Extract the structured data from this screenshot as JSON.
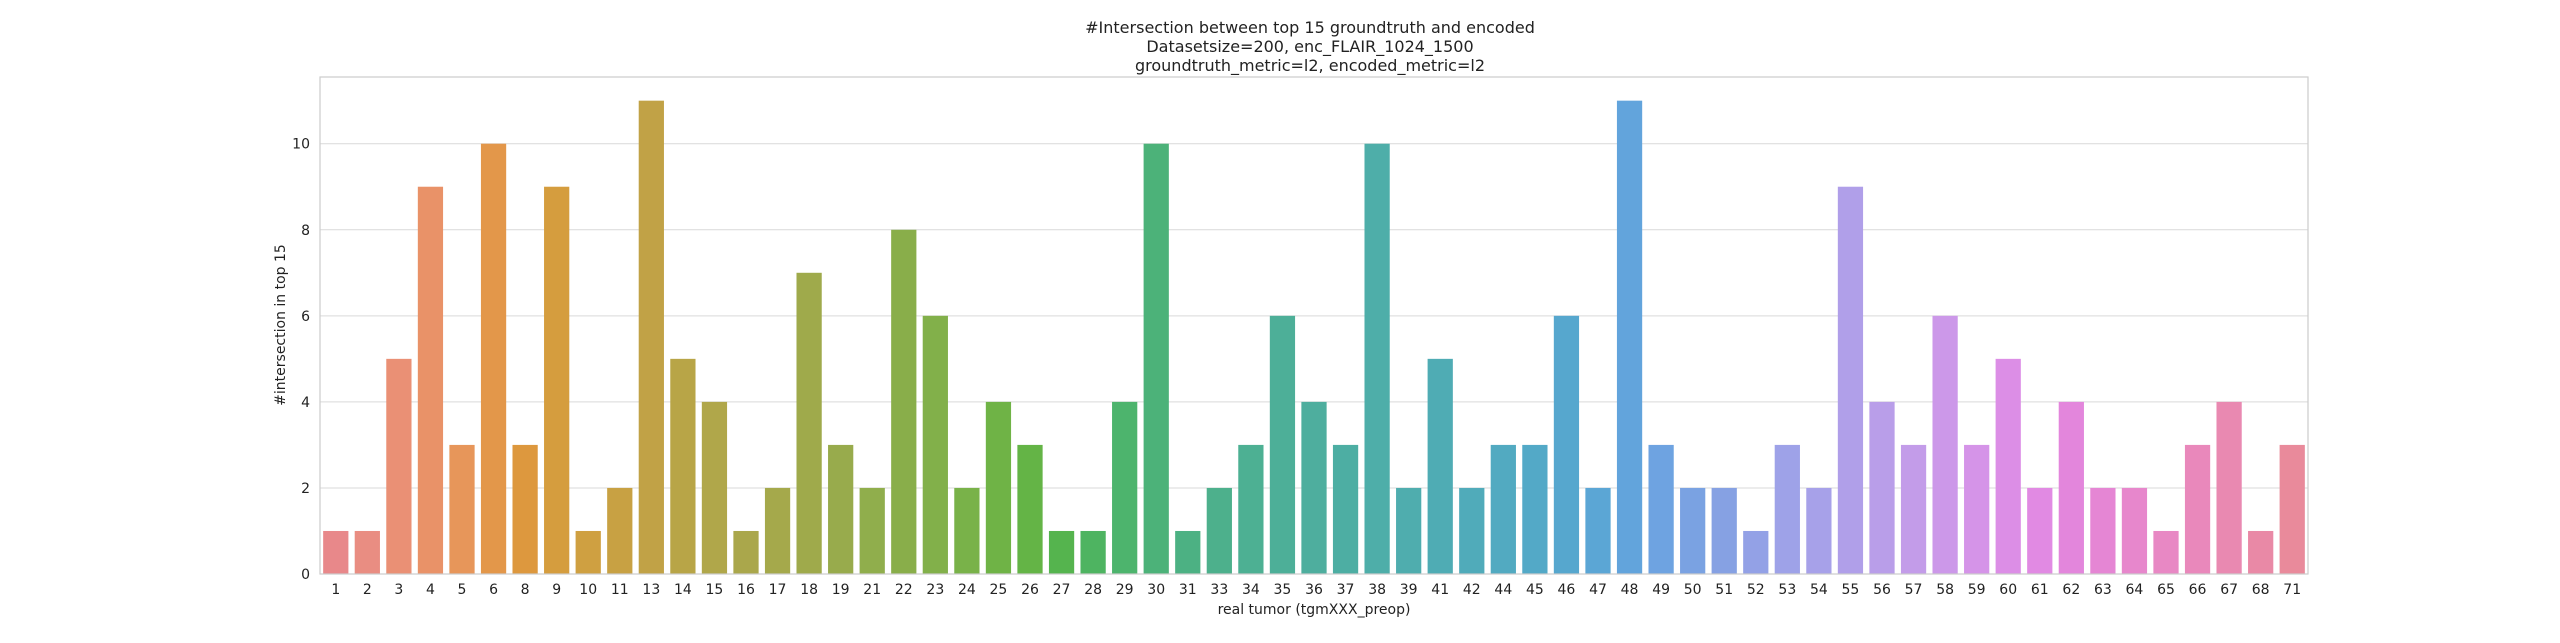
{
  "chart_data": {
    "type": "bar",
    "title_lines": [
      "#Intersection between top 15 groundtruth and encoded",
      "Datasetsize=200, enc_FLAIR_1024_1500",
      "groundtruth_metric=l2, encoded_metric=l2"
    ],
    "xlabel": "real tumor (tgmXXX_preop)",
    "ylabel": "#intersection in top 15",
    "ylim": [
      0,
      11.55
    ],
    "yticks": [
      0,
      2,
      4,
      6,
      8,
      10
    ],
    "grid": true,
    "categories": [
      "1",
      "2",
      "3",
      "4",
      "5",
      "6",
      "8",
      "9",
      "10",
      "11",
      "13",
      "14",
      "15",
      "16",
      "17",
      "18",
      "19",
      "21",
      "22",
      "23",
      "24",
      "25",
      "26",
      "27",
      "28",
      "29",
      "30",
      "31",
      "33",
      "34",
      "35",
      "36",
      "37",
      "38",
      "39",
      "41",
      "42",
      "44",
      "45",
      "46",
      "47",
      "48",
      "49",
      "50",
      "51",
      "52",
      "53",
      "54",
      "55",
      "56",
      "57",
      "58",
      "59",
      "60",
      "61",
      "62",
      "63",
      "64",
      "65",
      "66",
      "67",
      "68",
      "71"
    ],
    "values": [
      1,
      1,
      5,
      9,
      3,
      10,
      3,
      9,
      1,
      2,
      11,
      5,
      4,
      1,
      2,
      7,
      3,
      2,
      8,
      6,
      2,
      4,
      3,
      1,
      1,
      4,
      10,
      1,
      2,
      3,
      6,
      4,
      3,
      10,
      2,
      5,
      2,
      3,
      3,
      6,
      2,
      11,
      3,
      2,
      2,
      1,
      3,
      2,
      9,
      4,
      3,
      6,
      3,
      5,
      2,
      4,
      2,
      2,
      1,
      3,
      4,
      1,
      3
    ],
    "colors": [
      "#e8888a",
      "#e98d82",
      "#ea9075",
      "#e99268",
      "#e7965a",
      "#e3974a",
      "#dd983e",
      "#d59d3e",
      "#cfa041",
      "#c8a143",
      "#c1a246",
      "#b8a547",
      "#b0a74a",
      "#aaa74b",
      "#a5a94b",
      "#9faa4b",
      "#98ab4c",
      "#90ae4c",
      "#89ae4a",
      "#82b04a",
      "#79b249",
      "#6fb346",
      "#64b446",
      "#55b44e",
      "#4eb461",
      "#4db46d",
      "#4cb279",
      "#4cb183",
      "#4db08c",
      "#4db093",
      "#4daf98",
      "#4eae9e",
      "#4daea3",
      "#4eaea9",
      "#4fadae",
      "#4facb4",
      "#50abba",
      "#52aac1",
      "#53a9c7",
      "#56a7ce",
      "#5ba6d5",
      "#62a4dc",
      "#6ea3e1",
      "#7aa2e2",
      "#86a1e3",
      "#93a1e6",
      "#9ea2e8",
      "#a7a1e9",
      "#b09fe9",
      "#b99ee9",
      "#c39ce9",
      "#cc98e9",
      "#d594e8",
      "#dc8ee6",
      "#e18ae3",
      "#e386dc",
      "#e586d4",
      "#e787cc",
      "#e888c4",
      "#e988bb",
      "#e989b1",
      "#e989a6",
      "#e98a9b"
    ]
  }
}
